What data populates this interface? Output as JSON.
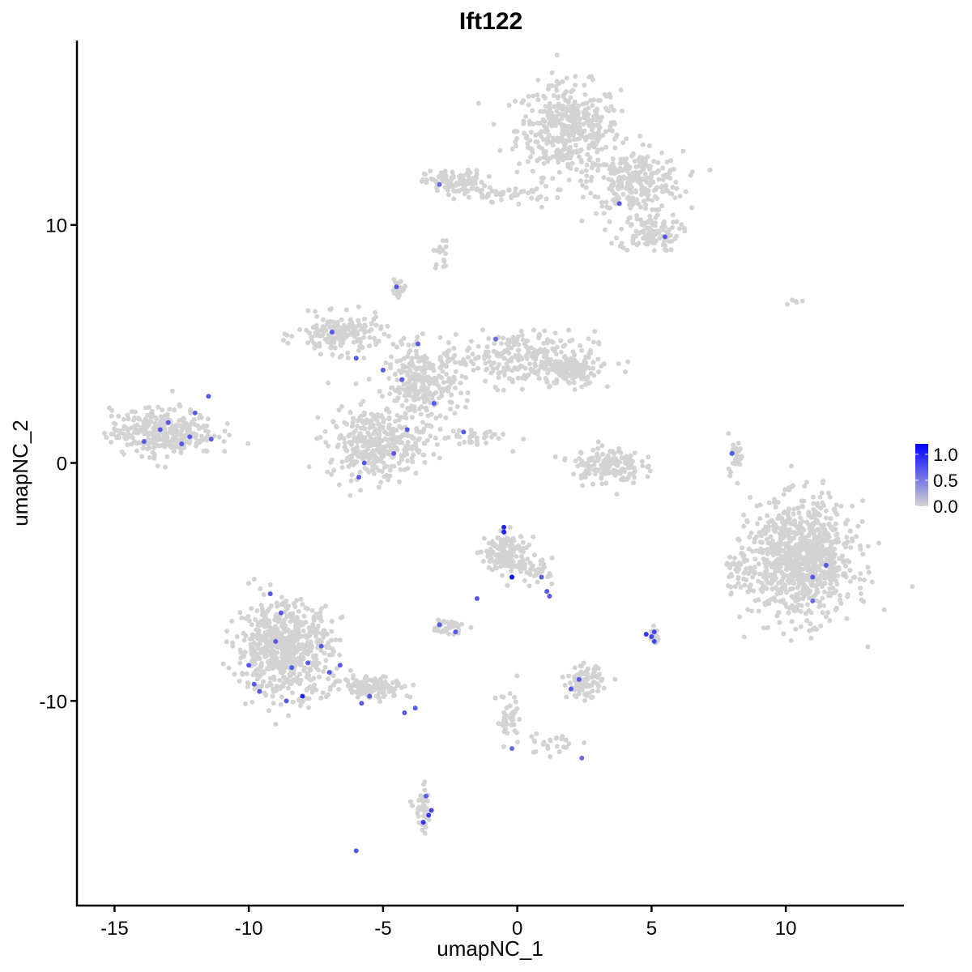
{
  "chart_data": {
    "type": "scatter",
    "title": "Ift122",
    "xlabel": "umapNC_1",
    "ylabel": "umapNC_2",
    "xlim": [
      -16.4,
      14.4
    ],
    "ylim": [
      -18.6,
      17.75
    ],
    "xticks": [
      -15,
      -10,
      -5,
      0,
      5,
      10
    ],
    "xtick_labels": [
      "-15",
      "-10",
      "-5",
      "0",
      "5",
      "10"
    ],
    "yticks": [
      -10,
      0,
      10
    ],
    "ytick_labels": [
      "-10",
      "0",
      "10"
    ],
    "grid": false,
    "color_scale": {
      "low": "#D3D3D3",
      "high": "#0000FF",
      "min": 0,
      "max": 1.2
    },
    "legend": {
      "position": "right",
      "ticks": [
        1.0,
        0.5,
        0.0
      ],
      "tick_labels": [
        "1.0",
        "0.5",
        "0.0"
      ]
    },
    "background_clusters": [
      {
        "cx": 1.9,
        "cy": 14.0,
        "sx": 1.2,
        "sy": 1.2,
        "n": 420
      },
      {
        "cx": 4.4,
        "cy": 11.8,
        "sx": 1.1,
        "sy": 0.8,
        "n": 260
      },
      {
        "cx": 4.9,
        "cy": 9.7,
        "sx": 0.7,
        "sy": 0.5,
        "n": 110
      },
      {
        "cx": -2.3,
        "cy": 11.8,
        "sx": 0.7,
        "sy": 0.3,
        "n": 110
      },
      {
        "cx": -0.4,
        "cy": 11.3,
        "sx": 1.1,
        "sy": 0.2,
        "n": 50
      },
      {
        "cx": -2.8,
        "cy": 8.8,
        "sx": 0.2,
        "sy": 0.4,
        "n": 15
      },
      {
        "cx": -3.6,
        "cy": 3.2,
        "sx": 0.8,
        "sy": 1.0,
        "n": 260
      },
      {
        "cx": -6.6,
        "cy": 5.4,
        "sx": 1.0,
        "sy": 0.5,
        "n": 170
      },
      {
        "cx": -4.4,
        "cy": 7.3,
        "sx": 0.2,
        "sy": 0.3,
        "n": 20
      },
      {
        "cx": 0.0,
        "cy": 4.4,
        "sx": 1.8,
        "sy": 0.7,
        "n": 280
      },
      {
        "cx": 2.0,
        "cy": 3.9,
        "sx": 0.6,
        "sy": 0.4,
        "n": 120
      },
      {
        "cx": -5.3,
        "cy": 0.8,
        "sx": 1.1,
        "sy": 0.9,
        "n": 330
      },
      {
        "cx": -1.8,
        "cy": 1.1,
        "sx": 0.9,
        "sy": 0.3,
        "n": 40
      },
      {
        "cx": -13.2,
        "cy": 1.3,
        "sx": 1.2,
        "sy": 0.6,
        "n": 330
      },
      {
        "cx": 3.3,
        "cy": -0.1,
        "sx": 0.8,
        "sy": 0.5,
        "n": 150
      },
      {
        "cx": 8.1,
        "cy": 0.4,
        "sx": 0.2,
        "sy": 0.5,
        "n": 25
      },
      {
        "cx": 10.6,
        "cy": -4.1,
        "sx": 1.2,
        "sy": 1.5,
        "n": 900
      },
      {
        "cx": 8.2,
        "cy": -4.5,
        "sx": 0.3,
        "sy": 0.4,
        "n": 40
      },
      {
        "cx": -8.7,
        "cy": -7.8,
        "sx": 1.1,
        "sy": 1.2,
        "n": 650
      },
      {
        "cx": -5.4,
        "cy": -9.4,
        "sx": 0.9,
        "sy": 0.3,
        "n": 130
      },
      {
        "cx": -0.4,
        "cy": -3.8,
        "sx": 0.5,
        "sy": 0.5,
        "n": 160
      },
      {
        "cx": 0.7,
        "cy": -4.5,
        "sx": 0.4,
        "sy": 0.3,
        "n": 40
      },
      {
        "cx": -2.6,
        "cy": -6.9,
        "sx": 0.4,
        "sy": 0.2,
        "n": 40
      },
      {
        "cx": 2.5,
        "cy": -9.2,
        "sx": 0.4,
        "sy": 0.4,
        "n": 100
      },
      {
        "cx": 5.1,
        "cy": -7.3,
        "sx": 0.1,
        "sy": 0.2,
        "n": 15
      },
      {
        "cx": -3.5,
        "cy": -14.6,
        "sx": 0.2,
        "sy": 0.6,
        "n": 40
      },
      {
        "cx": -0.3,
        "cy": -10.8,
        "sx": 0.3,
        "sy": 0.7,
        "n": 40
      },
      {
        "cx": 1.3,
        "cy": -11.8,
        "sx": 0.7,
        "sy": 0.3,
        "n": 25
      },
      {
        "cx": 10.4,
        "cy": 6.8,
        "sx": 0.2,
        "sy": 0.1,
        "n": 5
      }
    ],
    "expressing_points": [
      {
        "x": -0.5,
        "y": -2.7,
        "v": 1.0
      },
      {
        "x": -0.5,
        "y": -2.9,
        "v": 1.0
      },
      {
        "x": -0.2,
        "y": -4.8,
        "v": 1.2
      },
      {
        "x": 4.8,
        "y": -7.2,
        "v": 0.9
      },
      {
        "x": 5.0,
        "y": -7.3,
        "v": 0.8
      },
      {
        "x": 5.1,
        "y": -7.5,
        "v": 0.8
      },
      {
        "x": 5.1,
        "y": -7.1,
        "v": 0.8
      },
      {
        "x": -3.5,
        "y": -15.1,
        "v": 0.9
      },
      {
        "x": -3.3,
        "y": -14.8,
        "v": 0.9
      },
      {
        "x": -3.2,
        "y": -14.6,
        "v": 0.8
      },
      {
        "x": -3.4,
        "y": -14.0,
        "v": 0.7
      },
      {
        "x": -6.0,
        "y": -16.3,
        "v": 0.7
      },
      {
        "x": -4.2,
        "y": -10.5,
        "v": 0.7
      },
      {
        "x": -3.8,
        "y": -10.3,
        "v": 0.7
      },
      {
        "x": -9.8,
        "y": -9.3,
        "v": 0.7
      },
      {
        "x": -9.6,
        "y": -9.6,
        "v": 0.7
      },
      {
        "x": -9.0,
        "y": -7.5,
        "v": 0.7
      },
      {
        "x": -8.8,
        "y": -6.3,
        "v": 0.7
      },
      {
        "x": -8.4,
        "y": -8.6,
        "v": 0.7
      },
      {
        "x": -8.0,
        "y": -9.8,
        "v": 1.0
      },
      {
        "x": -7.8,
        "y": -8.4,
        "v": 0.7
      },
      {
        "x": -7.3,
        "y": -7.7,
        "v": 0.7
      },
      {
        "x": -9.2,
        "y": -5.5,
        "v": 0.7
      },
      {
        "x": -7.0,
        "y": -8.8,
        "v": 0.7
      },
      {
        "x": -6.6,
        "y": -8.5,
        "v": 0.7
      },
      {
        "x": -5.8,
        "y": -10.1,
        "v": 0.7
      },
      {
        "x": -5.5,
        "y": -9.8,
        "v": 0.7
      },
      {
        "x": -10.0,
        "y": -8.5,
        "v": 0.7
      },
      {
        "x": -8.6,
        "y": -10.0,
        "v": 0.7
      },
      {
        "x": -13.9,
        "y": 0.9,
        "v": 0.7
      },
      {
        "x": -13.3,
        "y": 1.4,
        "v": 0.7
      },
      {
        "x": -13.0,
        "y": 1.7,
        "v": 0.7
      },
      {
        "x": -12.5,
        "y": 0.8,
        "v": 0.7
      },
      {
        "x": -12.2,
        "y": 1.1,
        "v": 0.7
      },
      {
        "x": -12.0,
        "y": 2.1,
        "v": 0.7
      },
      {
        "x": -11.5,
        "y": 2.8,
        "v": 0.7
      },
      {
        "x": -11.4,
        "y": 1.0,
        "v": 0.7
      },
      {
        "x": -5.9,
        "y": -0.6,
        "v": 0.7
      },
      {
        "x": -5.7,
        "y": 0.0,
        "v": 0.7
      },
      {
        "x": -4.6,
        "y": 0.4,
        "v": 0.7
      },
      {
        "x": -4.1,
        "y": 1.4,
        "v": 0.7
      },
      {
        "x": -6.0,
        "y": 4.4,
        "v": 0.7
      },
      {
        "x": -5.0,
        "y": 3.9,
        "v": 0.7
      },
      {
        "x": -4.3,
        "y": 3.5,
        "v": 0.7
      },
      {
        "x": -3.7,
        "y": 5.0,
        "v": 0.7
      },
      {
        "x": -3.1,
        "y": 2.5,
        "v": 0.7
      },
      {
        "x": -6.9,
        "y": 5.5,
        "v": 0.7
      },
      {
        "x": -4.5,
        "y": 7.4,
        "v": 0.7
      },
      {
        "x": -2.0,
        "y": 1.3,
        "v": 0.7
      },
      {
        "x": -0.8,
        "y": 5.2,
        "v": 0.6
      },
      {
        "x": -2.9,
        "y": 11.7,
        "v": 0.6
      },
      {
        "x": 3.8,
        "y": 10.9,
        "v": 0.7
      },
      {
        "x": 5.5,
        "y": 9.5,
        "v": 0.7
      },
      {
        "x": 8.0,
        "y": 0.4,
        "v": 0.7
      },
      {
        "x": 11.0,
        "y": -4.8,
        "v": 0.7
      },
      {
        "x": 11.5,
        "y": -4.3,
        "v": 0.7
      },
      {
        "x": 11.0,
        "y": -5.8,
        "v": 0.6
      },
      {
        "x": 1.1,
        "y": -5.4,
        "v": 0.7
      },
      {
        "x": 1.2,
        "y": -5.6,
        "v": 0.7
      },
      {
        "x": 0.9,
        "y": -4.8,
        "v": 0.7
      },
      {
        "x": -1.5,
        "y": -5.7,
        "v": 0.7
      },
      {
        "x": -2.3,
        "y": -7.1,
        "v": 0.7
      },
      {
        "x": -2.9,
        "y": -6.8,
        "v": 0.7
      },
      {
        "x": 2.0,
        "y": -9.5,
        "v": 0.7
      },
      {
        "x": 2.3,
        "y": -9.1,
        "v": 0.7
      },
      {
        "x": -0.2,
        "y": -12.0,
        "v": 0.6
      },
      {
        "x": 2.4,
        "y": -12.4,
        "v": 0.6
      }
    ]
  }
}
